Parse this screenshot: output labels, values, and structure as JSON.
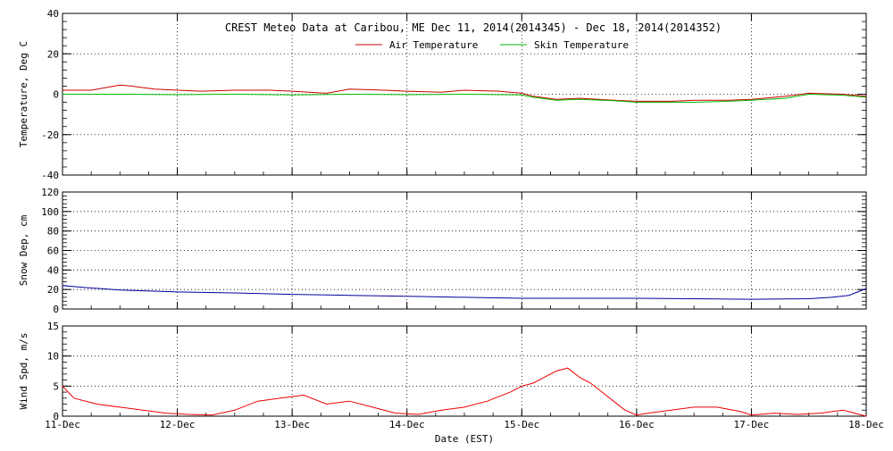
{
  "chart_data": {
    "type": "line",
    "title": "CREST Meteo Data at Caribou, ME   Dec 11, 2014(2014345) - Dec 18, 2014(2014352)",
    "xlabel": "Date (EST)",
    "x_ticks": [
      "11-Dec",
      "12-Dec",
      "13-Dec",
      "14-Dec",
      "15-Dec",
      "16-Dec",
      "17-Dec",
      "18-Dec"
    ],
    "xlim": [
      0,
      7
    ],
    "grid": true,
    "legend_position": "top-center",
    "panels": [
      {
        "ylabel": "Temperature, Deg C",
        "ylim": [
          -40,
          40
        ],
        "yticks": [
          -40,
          -20,
          0,
          20,
          40
        ],
        "series": [
          {
            "name": "Air Temperature",
            "color": "#cc0000",
            "x": [
              0,
              0.25,
              0.5,
              0.6,
              0.8,
              1.0,
              1.2,
              1.5,
              1.8,
              2.0,
              2.3,
              2.5,
              2.8,
              3.0,
              3.3,
              3.5,
              3.8,
              4.0,
              4.1,
              4.3,
              4.5,
              4.8,
              5.0,
              5.3,
              5.5,
              5.8,
              6.0,
              6.3,
              6.5,
              6.8,
              7.0
            ],
            "y": [
              2,
              2,
              4.5,
              4,
              2.5,
              2,
              1.5,
              2,
              2,
              1.5,
              0.5,
              2.5,
              2,
              1.5,
              1,
              2,
              1.5,
              0.5,
              -1,
              -2.5,
              -2,
              -3,
              -3.5,
              -3.5,
              -3,
              -3,
              -2.5,
              -1,
              0.5,
              0,
              -1
            ]
          },
          {
            "name": "Skin Temperature",
            "color": "#00bb00",
            "x": [
              0,
              0.5,
              1.0,
              1.5,
              2.0,
              2.5,
              3.0,
              3.5,
              4.0,
              4.1,
              4.3,
              4.5,
              4.8,
              5.0,
              5.3,
              5.5,
              5.8,
              6.0,
              6.3,
              6.5,
              6.8,
              7.0
            ],
            "y": [
              0,
              0,
              -0.2,
              0,
              -0.3,
              0,
              -0.2,
              0,
              -0.3,
              -1.5,
              -3,
              -2.5,
              -3.2,
              -4,
              -4,
              -4,
              -3.5,
              -3,
              -2,
              0,
              -0.5,
              -1.5
            ]
          }
        ]
      },
      {
        "ylabel": "Snow Dep, cm",
        "ylim": [
          0,
          120
        ],
        "yticks": [
          0,
          20,
          40,
          60,
          80,
          100,
          120
        ],
        "series": [
          {
            "name": "",
            "color": "#000099",
            "x": [
              0,
              0.2,
              0.5,
              1.0,
              1.5,
              2.0,
              2.5,
              3.0,
              3.5,
              4.0,
              4.5,
              5.0,
              5.5,
              6.0,
              6.5,
              6.7,
              6.85,
              7.0
            ],
            "y": [
              24,
              22,
              19.5,
              17.5,
              16.5,
              15,
              14,
              13,
              12,
              11,
              11,
              11,
              10.5,
              10,
              10.5,
              12,
              14,
              21
            ]
          }
        ]
      },
      {
        "ylabel": "Wind Spd, m/s",
        "ylim": [
          0,
          15
        ],
        "yticks": [
          0,
          5,
          10,
          15
        ],
        "series": [
          {
            "name": "",
            "color": "#ee0000",
            "x": [
              0,
              0.05,
              0.1,
              0.3,
              0.5,
              0.7,
              0.9,
              1.1,
              1.3,
              1.5,
              1.7,
              1.9,
              2.1,
              2.3,
              2.5,
              2.7,
              2.9,
              3.1,
              3.3,
              3.5,
              3.7,
              3.9,
              4.0,
              4.1,
              4.2,
              4.3,
              4.4,
              4.5,
              4.6,
              4.7,
              4.8,
              4.9,
              5.0,
              5.1,
              5.3,
              5.5,
              5.7,
              5.9,
              6.0,
              6.2,
              6.4,
              6.6,
              6.8,
              6.9,
              7.0
            ],
            "y": [
              5,
              4,
              3,
              2,
              1.5,
              1,
              0.5,
              0.3,
              0.2,
              1,
              2.5,
              3,
              3.5,
              2,
              2.5,
              1.5,
              0.5,
              0.3,
              1,
              1.5,
              2.5,
              4,
              5,
              5.5,
              6.5,
              7.5,
              8,
              6.5,
              5.5,
              4,
              2.5,
              1,
              0.2,
              0.5,
              1,
              1.5,
              1.5,
              0.8,
              0.2,
              0.5,
              0.3,
              0.5,
              1,
              0.5,
              0
            ]
          }
        ]
      }
    ]
  }
}
